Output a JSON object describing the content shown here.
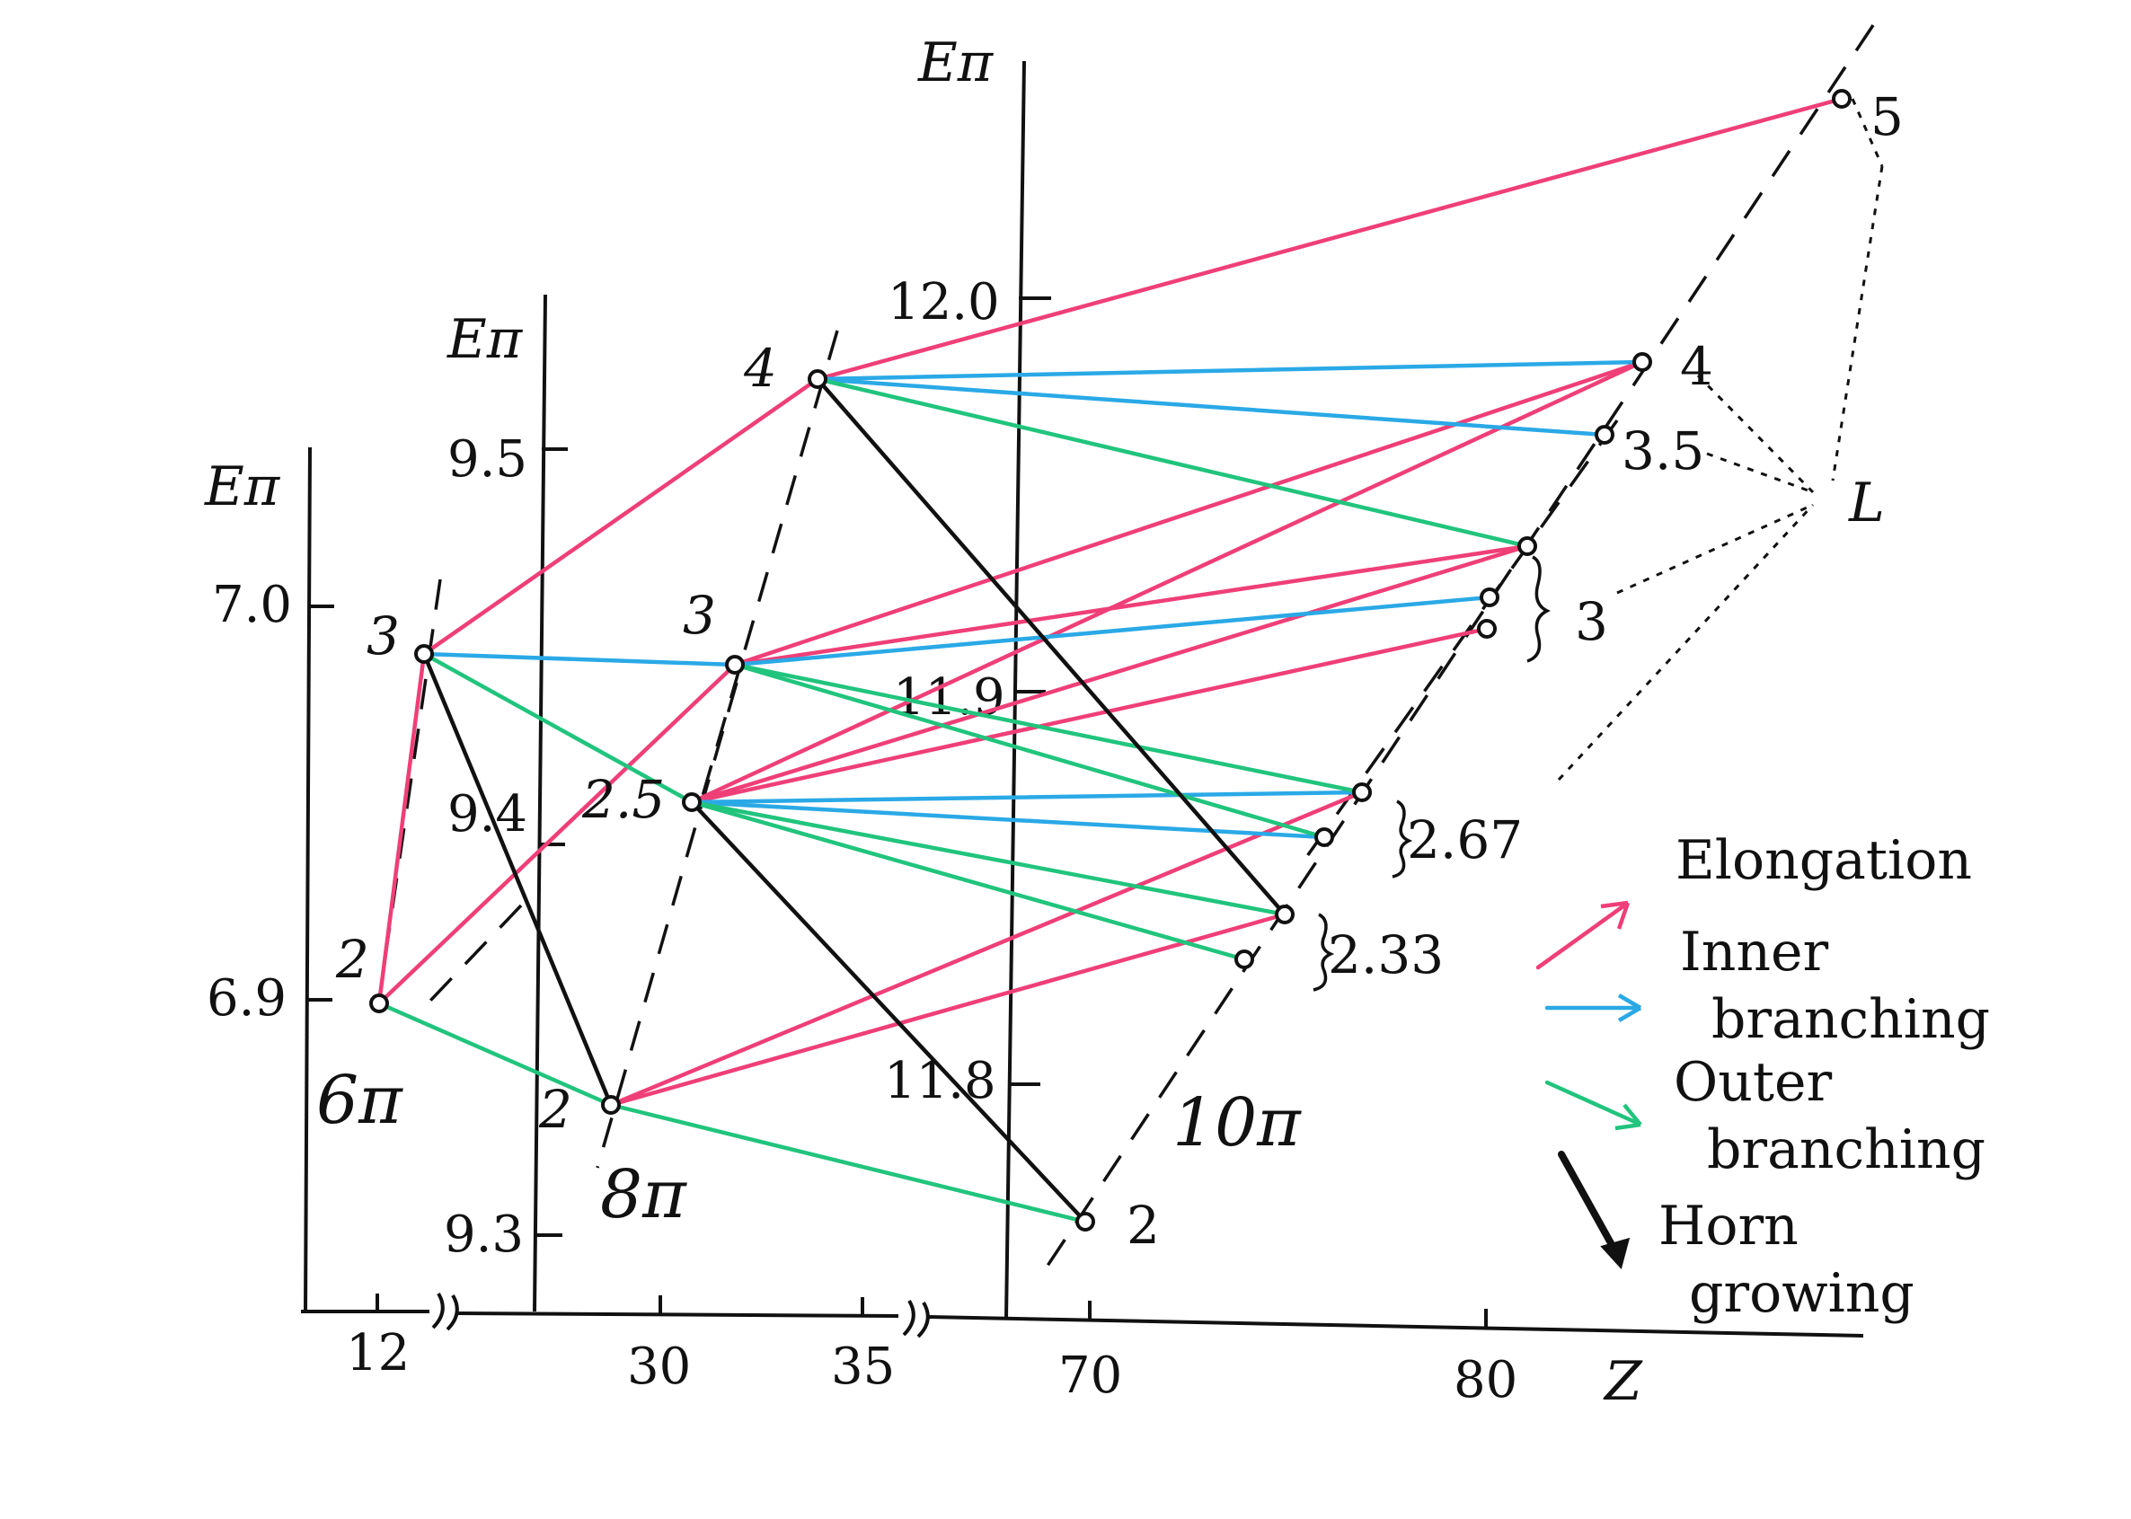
{
  "colors": {
    "elongation": "#ef3f77",
    "inner_branching": "#2aa9e6",
    "outer_branching": "#21c47d",
    "horn_growing": "#111111"
  },
  "axes": {
    "axis1": {
      "title": "Eπ",
      "ticks": [
        "7.0",
        "6.9"
      ]
    },
    "axis2": {
      "title": "Eπ",
      "ticks": [
        "9.5",
        "9.4",
        "9.3"
      ]
    },
    "axis3": {
      "title": "Eπ",
      "ticks": [
        "12.0",
        "11.9",
        "11.8"
      ]
    },
    "x_ticks": [
      "12",
      "30",
      "35",
      "70",
      "80"
    ],
    "x_title": "Z"
  },
  "groups": {
    "g6": "6π",
    "g8": "8π",
    "g10": "10π"
  },
  "node_labels": {
    "a2": "2",
    "a3": "3",
    "b2": "2",
    "b25": "2.5",
    "b3": "3",
    "b4": "4",
    "c2": "2",
    "c233": "2.33",
    "c267": "2.67",
    "c3": "3",
    "c35": "3.5",
    "c4": "4",
    "c5": "5",
    "L": "L"
  },
  "legend": {
    "elongation": "Elongation",
    "inner_1": "Inner",
    "inner_2": "branching",
    "outer_1": "Outer",
    "outer_2": "branching",
    "horn_1": "Horn",
    "horn_2": "growing"
  }
}
